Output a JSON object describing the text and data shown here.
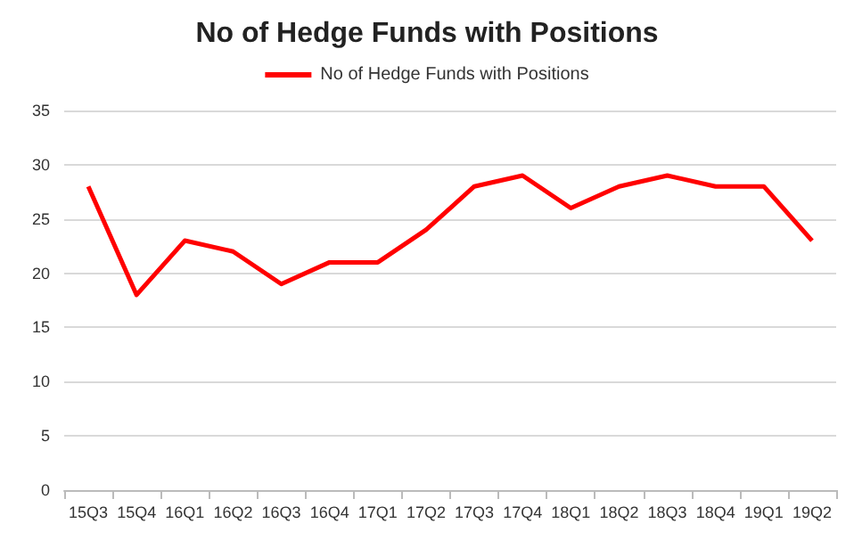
{
  "chart_data": {
    "type": "line",
    "title": "No of Hedge Funds with Positions",
    "categories": [
      "15Q3",
      "15Q4",
      "16Q1",
      "16Q2",
      "16Q3",
      "16Q4",
      "17Q1",
      "17Q2",
      "17Q3",
      "17Q4",
      "18Q1",
      "18Q2",
      "18Q3",
      "18Q4",
      "19Q1",
      "19Q2"
    ],
    "series": [
      {
        "name": "No of Hedge Funds with Positions",
        "color": "#ff0000",
        "values": [
          28,
          18,
          23,
          22,
          19,
          21,
          21,
          24,
          28,
          29,
          26,
          28,
          29,
          28,
          28,
          23
        ]
      }
    ],
    "ylim": [
      0,
      35
    ],
    "yticks": [
      0,
      5,
      10,
      15,
      20,
      25,
      30,
      35
    ],
    "grid": "y",
    "legend": "top",
    "marker": "none",
    "line_style": "solid"
  }
}
